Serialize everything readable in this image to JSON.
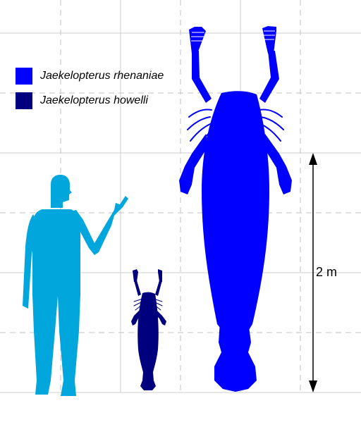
{
  "legend": {
    "items": [
      {
        "label": "Jaekelopterus rhenaniae",
        "color": "#0000ff"
      },
      {
        "label": "Jaekelopterus howelli",
        "color": "#00007f"
      }
    ]
  },
  "scale_bar": {
    "label": "2 m"
  },
  "colors": {
    "human": "#00a6dc",
    "grid_solid": "#cccccc",
    "grid_dashed": "#c2c2c2"
  }
}
